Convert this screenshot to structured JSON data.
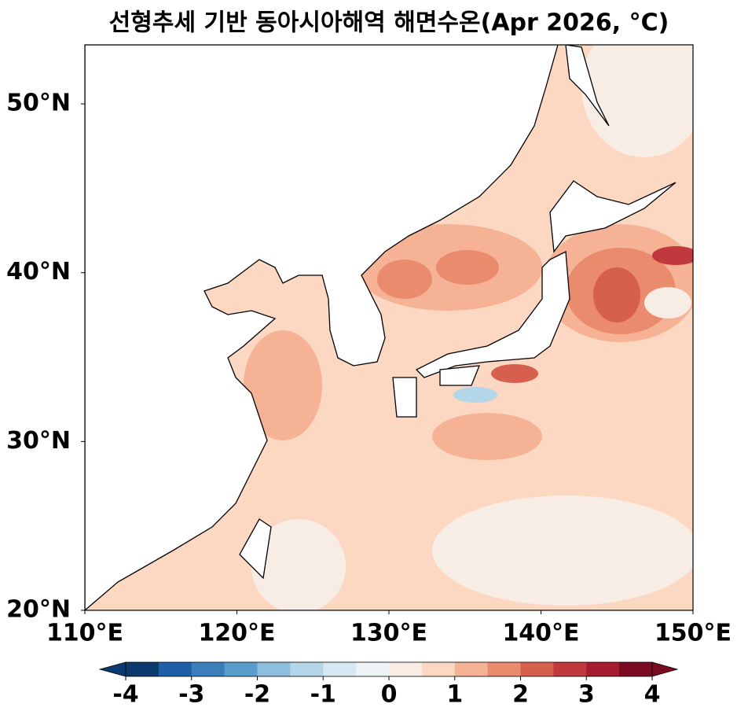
{
  "title": "선형추세 기반 동아시아해역 해면수온(Apr 2026, °C)",
  "map": {
    "xlim": [
      110,
      150
    ],
    "ylim": [
      20,
      53.5
    ],
    "xticks": [
      {
        "value": 110,
        "label": "110°E"
      },
      {
        "value": 120,
        "label": "120°E"
      },
      {
        "value": 130,
        "label": "130°E"
      },
      {
        "value": 140,
        "label": "140°E"
      },
      {
        "value": 150,
        "label": "150°E"
      }
    ],
    "yticks": [
      {
        "value": 20,
        "label": "20°N"
      },
      {
        "value": 30,
        "label": "30°N"
      },
      {
        "value": 40,
        "label": "40°N"
      },
      {
        "value": 50,
        "label": "50°N"
      }
    ]
  },
  "colorbar": {
    "lim": [
      -4,
      4
    ],
    "ticks": [
      -4,
      -3,
      -2,
      -1,
      0,
      1,
      2,
      3,
      4
    ],
    "colors": [
      "#0d3a6e",
      "#1f5fa8",
      "#3a7fbc",
      "#5a9ccb",
      "#8cbfdd",
      "#b3d6e8",
      "#d6e8f1",
      "#eef3f6",
      "#f8ede4",
      "#fcd7c2",
      "#f5b295",
      "#e98b6c",
      "#d6604d",
      "#c0393c",
      "#a51c2f",
      "#7a0b22"
    ]
  }
}
